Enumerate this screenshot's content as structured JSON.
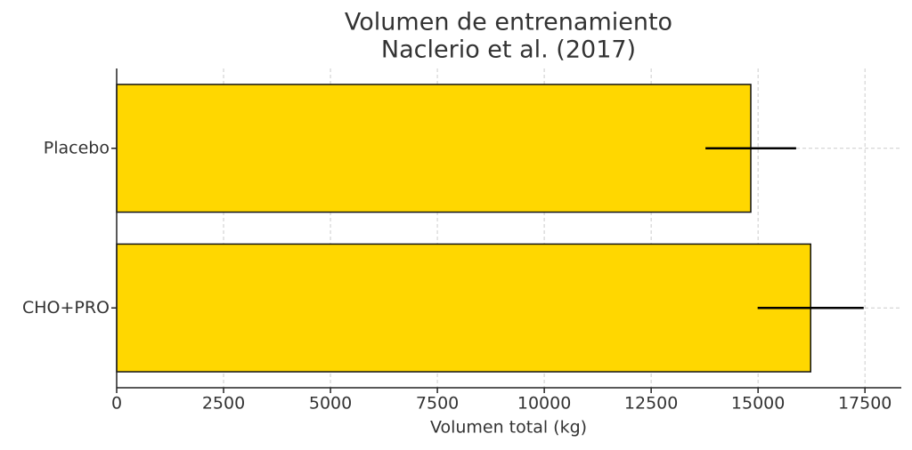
{
  "chart_data": {
    "type": "barh",
    "title": [
      "Volumen de entrenamiento",
      "Naclerio et al. (2017)"
    ],
    "xlabel": "Volumen total (kg)",
    "categories": [
      "CHO+PRO",
      "Placebo"
    ],
    "values": [
      16230,
      14830
    ],
    "errors": [
      1240,
      1060
    ],
    "color": "#ffd700",
    "xlim": [
      0,
      18350
    ],
    "xticks": [
      0,
      2500,
      5000,
      7500,
      10000,
      12500,
      15000,
      17500
    ],
    "grid": true
  }
}
